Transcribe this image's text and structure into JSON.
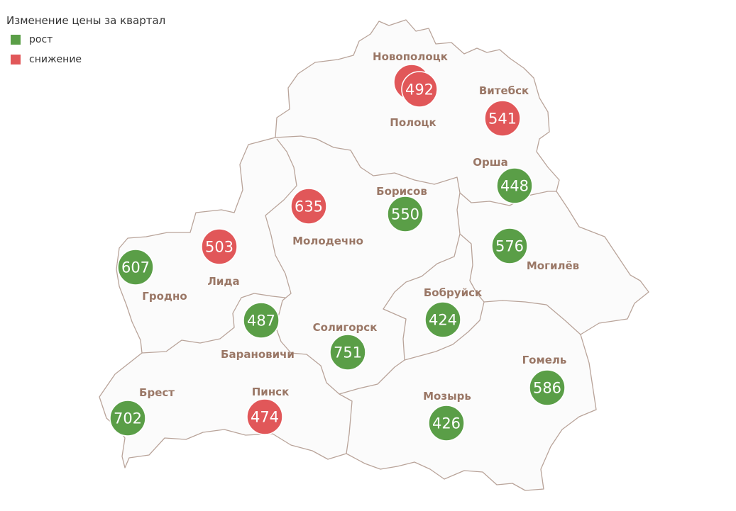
{
  "legend": {
    "title": "Изменение цены за квартал",
    "items": [
      {
        "label": "рост",
        "color": "#5a9e47",
        "key": "up"
      },
      {
        "label": "снижение",
        "color": "#e15759",
        "key": "down"
      }
    ]
  },
  "colors": {
    "up": "#5a9e47",
    "down": "#e15759",
    "border": "#b9a49a",
    "fill": "#fbfbfb",
    "label": "#9a7766"
  },
  "cities": [
    {
      "name": "Новополоцк",
      "value": "",
      "status": "down"
    },
    {
      "name": "Полоцк",
      "value": "492",
      "status": "down"
    },
    {
      "name": "Витебск",
      "value": "541",
      "status": "down"
    },
    {
      "name": "Орша",
      "value": "448",
      "status": "up"
    },
    {
      "name": "Борисов",
      "value": "550",
      "status": "up"
    },
    {
      "name": "Молодечно",
      "value": "635",
      "status": "down"
    },
    {
      "name": "Могилёв",
      "value": "576",
      "status": "up"
    },
    {
      "name": "Лида",
      "value": "503",
      "status": "down"
    },
    {
      "name": "Гродно",
      "value": "607",
      "status": "up"
    },
    {
      "name": "Барановичи",
      "value": "487",
      "status": "up"
    },
    {
      "name": "Солигорск",
      "value": "751",
      "status": "up"
    },
    {
      "name": "Бобруйск",
      "value": "424",
      "status": "up"
    },
    {
      "name": "Гомель",
      "value": "586",
      "status": "up"
    },
    {
      "name": "Мозырь",
      "value": "426",
      "status": "up"
    },
    {
      "name": "Пинск",
      "value": "474",
      "status": "down"
    },
    {
      "name": "Брест",
      "value": "702",
      "status": "up"
    }
  ]
}
